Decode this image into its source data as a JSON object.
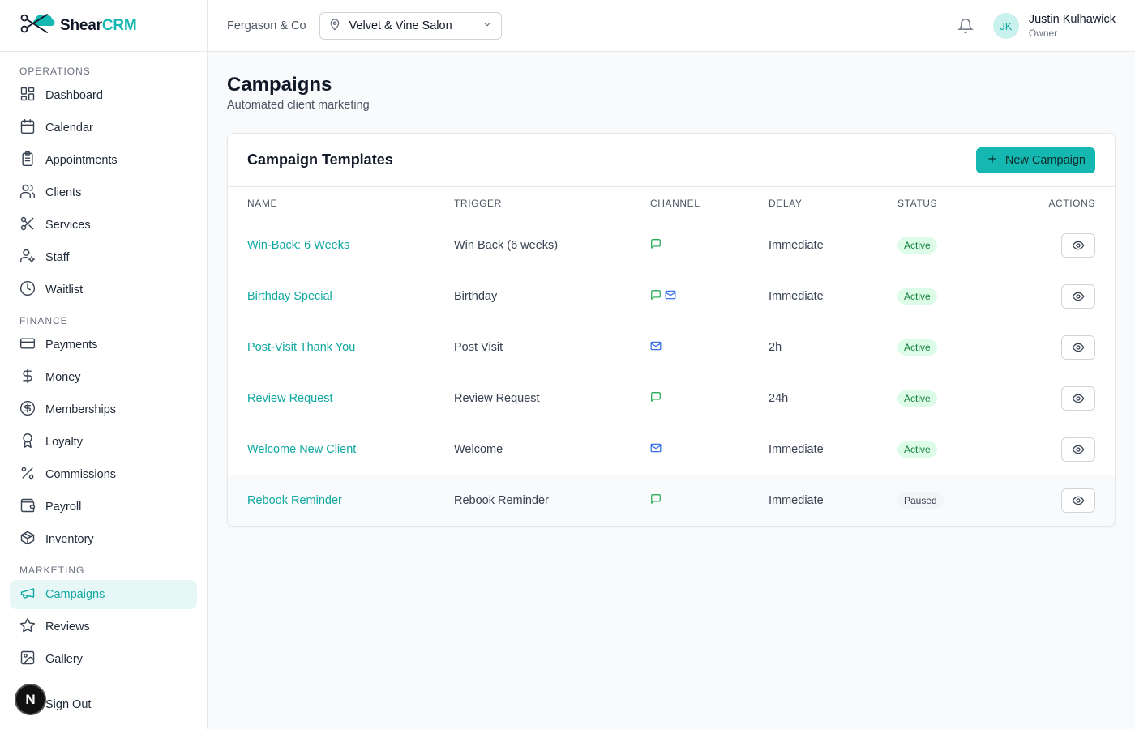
{
  "brand": {
    "name_part1": "Shear",
    "name_part2": "CRM",
    "accent": "#14b8b0"
  },
  "header": {
    "org": "Fergason & Co",
    "location": "Velvet & Vine Salon",
    "user": {
      "initials": "JK",
      "name": "Justin Kulhawick",
      "role": "Owner"
    }
  },
  "sidebar": {
    "sections": [
      {
        "title": "OPERATIONS",
        "items": [
          {
            "label": "Dashboard",
            "icon": "dashboard-icon"
          },
          {
            "label": "Calendar",
            "icon": "calendar-icon"
          },
          {
            "label": "Appointments",
            "icon": "clipboard-icon"
          },
          {
            "label": "Clients",
            "icon": "users-icon"
          },
          {
            "label": "Services",
            "icon": "scissors-icon"
          },
          {
            "label": "Staff",
            "icon": "user-cog-icon"
          },
          {
            "label": "Waitlist",
            "icon": "clock-icon"
          }
        ]
      },
      {
        "title": "FINANCE",
        "items": [
          {
            "label": "Payments",
            "icon": "credit-card-icon"
          },
          {
            "label": "Money",
            "icon": "dollar-icon"
          },
          {
            "label": "Memberships",
            "icon": "badge-dollar-icon"
          },
          {
            "label": "Loyalty",
            "icon": "award-icon"
          },
          {
            "label": "Commissions",
            "icon": "percent-icon"
          },
          {
            "label": "Payroll",
            "icon": "wallet-icon"
          },
          {
            "label": "Inventory",
            "icon": "package-icon"
          }
        ]
      },
      {
        "title": "MARKETING",
        "items": [
          {
            "label": "Campaigns",
            "icon": "megaphone-icon",
            "active": true
          },
          {
            "label": "Reviews",
            "icon": "star-icon"
          },
          {
            "label": "Gallery",
            "icon": "image-icon"
          }
        ]
      }
    ],
    "footer": {
      "sign_out": "Sign Out",
      "badge": "N"
    }
  },
  "page": {
    "title": "Campaigns",
    "subtitle": "Automated client marketing",
    "card_title": "Campaign Templates",
    "new_button": "New Campaign",
    "columns": [
      "NAME",
      "TRIGGER",
      "CHANNEL",
      "DELAY",
      "STATUS",
      "ACTIONS"
    ],
    "rows": [
      {
        "name": "Win-Back: 6 Weeks",
        "trigger": "Win Back (6 weeks)",
        "channels": [
          "sms"
        ],
        "delay": "Immediate",
        "status": "Active"
      },
      {
        "name": "Birthday Special",
        "trigger": "Birthday",
        "channels": [
          "sms",
          "email"
        ],
        "delay": "Immediate",
        "status": "Active"
      },
      {
        "name": "Post-Visit Thank You",
        "trigger": "Post Visit",
        "channels": [
          "email"
        ],
        "delay": "2h",
        "status": "Active"
      },
      {
        "name": "Review Request",
        "trigger": "Review Request",
        "channels": [
          "sms"
        ],
        "delay": "24h",
        "status": "Active"
      },
      {
        "name": "Welcome New Client",
        "trigger": "Welcome",
        "channels": [
          "email"
        ],
        "delay": "Immediate",
        "status": "Active"
      },
      {
        "name": "Rebook Reminder",
        "trigger": "Rebook Reminder",
        "channels": [
          "sms"
        ],
        "delay": "Immediate",
        "status": "Paused"
      }
    ]
  }
}
